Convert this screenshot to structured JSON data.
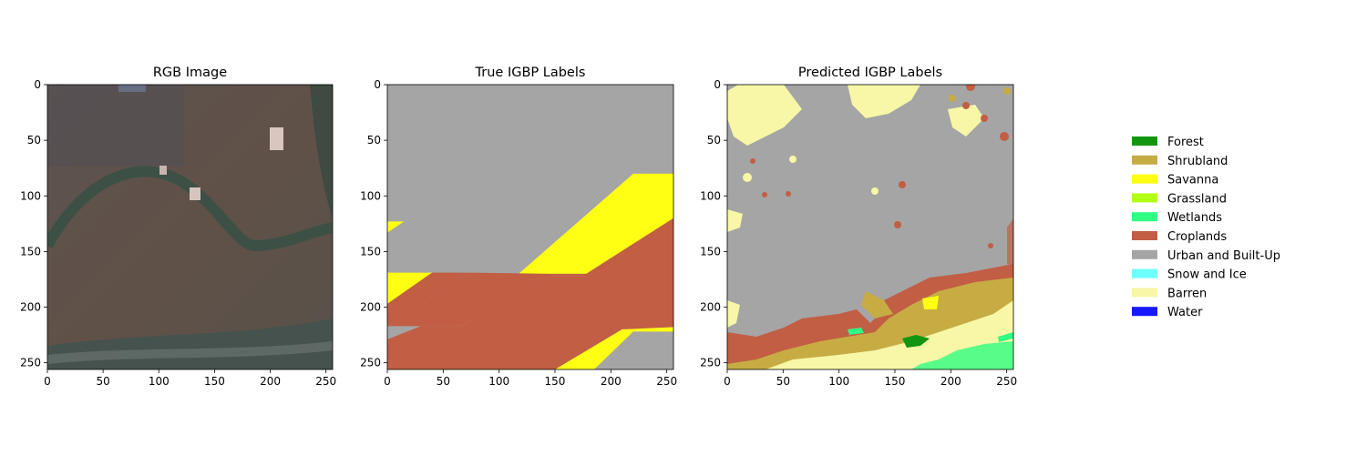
{
  "figure": {
    "panels": [
      {
        "title": "RGB Image",
        "kind": "rgb"
      },
      {
        "title": "True IGBP Labels",
        "kind": "true_labels"
      },
      {
        "title": "Predicted IGBP Labels",
        "kind": "predicted_labels"
      }
    ]
  },
  "chart_data": [
    {
      "type": "image",
      "title": "RGB Image",
      "xlim": [
        0,
        256
      ],
      "ylim": [
        256,
        0
      ],
      "x_ticks": [
        0,
        50,
        100,
        150,
        200,
        250
      ],
      "y_ticks": [
        0,
        50,
        100,
        150,
        200,
        250
      ]
    },
    {
      "type": "heatmap",
      "title": "True IGBP Labels",
      "xlim": [
        0,
        256
      ],
      "ylim": [
        256,
        0
      ],
      "x_ticks": [
        0,
        50,
        100,
        150,
        200,
        250
      ],
      "y_ticks": [
        0,
        50,
        100,
        150,
        200,
        250
      ],
      "regions": [
        {
          "label": "Urban and Built-Up",
          "note": "background"
        },
        {
          "label": "Savanna",
          "polygon": [
            [
              0,
              123
            ],
            [
              15,
              123
            ],
            [
              0,
              133
            ]
          ]
        },
        {
          "label": "Savanna",
          "polygon": [
            [
              0,
              169
            ],
            [
              40,
              169
            ],
            [
              0,
              197
            ]
          ]
        },
        {
          "label": "Croplands",
          "polygon": [
            [
              0,
              197
            ],
            [
              40,
              169
            ],
            [
              75,
              169
            ],
            [
              0,
              217
            ]
          ]
        },
        {
          "label": "Savanna",
          "polygon": [
            [
              30,
              217
            ],
            [
              64,
              217
            ],
            [
              220,
              80
            ],
            [
              256,
              80
            ],
            [
              256,
              120
            ],
            [
              178,
              170
            ],
            [
              148,
              170
            ],
            [
              65,
              217
            ]
          ]
        },
        {
          "label": "Croplands",
          "polygon": [
            [
              0,
              217
            ],
            [
              75,
              169
            ],
            [
              148,
              170
            ],
            [
              178,
              170
            ],
            [
              256,
              120
            ],
            [
              256,
              128
            ],
            [
              178,
              172
            ],
            [
              148,
              172
            ],
            [
              65,
              217
            ]
          ]
        },
        {
          "label": "Croplands",
          "polygon": [
            [
              0,
              229
            ],
            [
              30,
              217
            ],
            [
              65,
              217
            ],
            [
              148,
              172
            ],
            [
              178,
              172
            ],
            [
              256,
              126
            ],
            [
              256,
              218
            ],
            [
              210,
              220
            ],
            [
              150,
              256
            ],
            [
              0,
              256
            ]
          ]
        },
        {
          "label": "Savanna",
          "polygon": [
            [
              150,
              256
            ],
            [
              210,
              220
            ],
            [
              256,
              218
            ],
            [
              256,
              222
            ],
            [
              220,
              222
            ],
            [
              185,
              256
            ]
          ]
        }
      ]
    },
    {
      "type": "heatmap",
      "title": "Predicted IGBP Labels",
      "xlim": [
        0,
        256
      ],
      "ylim": [
        256,
        0
      ],
      "x_ticks": [
        0,
        50,
        100,
        150,
        200,
        250
      ],
      "y_ticks": [
        0,
        50,
        100,
        150,
        200,
        250
      ],
      "dominant_class": "Urban and Built-Up",
      "other_classes": [
        "Barren",
        "Croplands",
        "Shrubland",
        "Savanna",
        "Wetlands",
        "Forest"
      ]
    }
  ],
  "legend": {
    "placement": "right",
    "entries": [
      {
        "label": "Forest",
        "color": "#129612"
      },
      {
        "label": "Shrubland",
        "color": "#c7ac44"
      },
      {
        "label": "Savanna",
        "color": "#ffff14"
      },
      {
        "label": "Grassland",
        "color": "#b2ff14"
      },
      {
        "label": "Wetlands",
        "color": "#2ffe82"
      },
      {
        "label": "Croplands",
        "color": "#c25e44"
      },
      {
        "label": "Urban and Built-Up",
        "color": "#a5a5a5"
      },
      {
        "label": "Snow and Ice",
        "color": "#6effff"
      },
      {
        "label": "Barren",
        "color": "#f7f7a7"
      },
      {
        "label": "Water",
        "color": "#1818ff"
      }
    ]
  }
}
